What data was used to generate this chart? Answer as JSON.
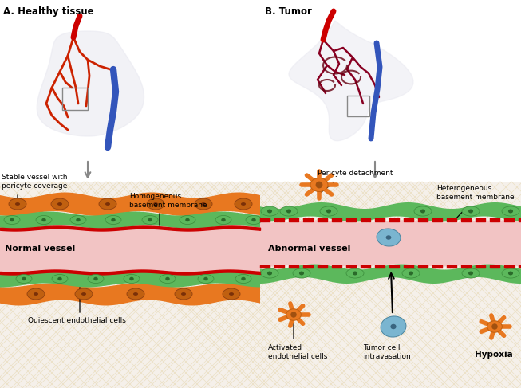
{
  "title_a": "A. Healthy tissue",
  "title_b": "B. Tumor",
  "label_normal_vessel": "Normal vessel",
  "label_abnormal_vessel": "Abnormal vessel",
  "label_stable": "Stable vessel with\npericyte coverage",
  "label_homogeneous": "Homogeneous\nbasement membrane",
  "label_quiescent": "Quiescent endothelial cells",
  "label_pericyte": "Pericyte detachment",
  "label_heterogeneous": "Heterogeneous\nbasement membrane",
  "label_activated": "Activated\nendothelial cells",
  "label_tumor_cell": "Tumor cell\nintravasation",
  "label_hypoxia": "Hypoxia",
  "bg_color": "#ffffff",
  "vessel_lumen_color": "#f2c4c4",
  "vessel_wall_red": "#cc0000",
  "orange_layer_color": "#e87820",
  "green_cell_color": "#5cb85c",
  "blue_cell_color": "#7ab5d0",
  "tissue_bg": "#f5f0ea",
  "grid_line_color": "#dcc88a"
}
